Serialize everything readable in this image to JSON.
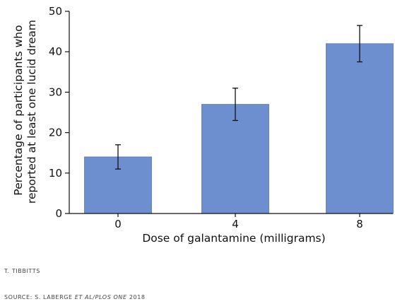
{
  "chart_data": {
    "type": "bar",
    "categories": [
      "0",
      "4",
      "8"
    ],
    "values": [
      14,
      27,
      42
    ],
    "error_low": [
      11,
      23,
      37.5
    ],
    "error_high": [
      17,
      31,
      46.5
    ],
    "ylabel_line1": "Percentage of participants who",
    "ylabel_line2": "reported at least one lucid dream",
    "xlabel": "Dose of galantamine (milligrams)",
    "yticks": [
      "0",
      "10",
      "20",
      "30",
      "40",
      "50"
    ],
    "ytick_values": [
      0,
      10,
      20,
      30,
      40,
      50
    ],
    "ylim": [
      0,
      50
    ],
    "bar_color": "#6d8fcf",
    "bar_edge_color": "#5577bb",
    "grid": false,
    "legend": "none"
  },
  "credits": {
    "artist": "T. TIBBITTS",
    "source_prefix": "SOURCE: S. LABERGE ",
    "source_italic": "ET AL/PLOS ONE",
    "source_year": " 2018"
  }
}
